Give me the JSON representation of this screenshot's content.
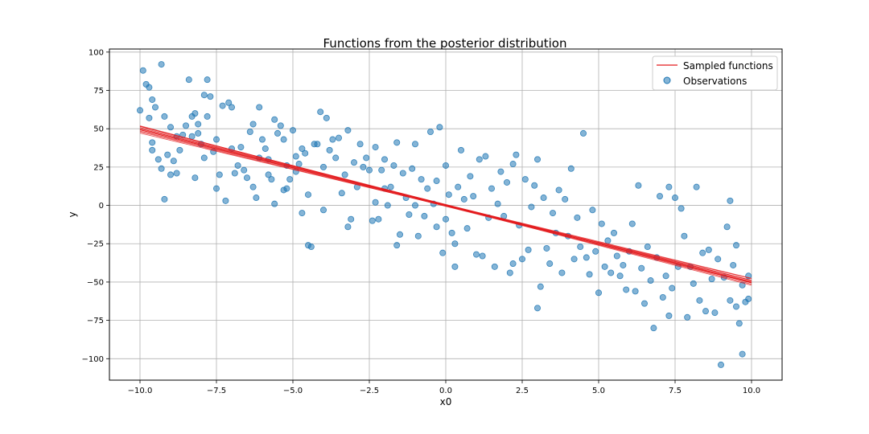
{
  "chart_data": {
    "type": "scatter",
    "title": "Functions from the posterior distribution",
    "xlabel": "x0",
    "ylabel": "y",
    "xlim": [
      -11,
      11
    ],
    "ylim": [
      -114,
      102
    ],
    "xticks": [
      -10.0,
      -7.5,
      -5.0,
      -2.5,
      0.0,
      2.5,
      5.0,
      7.5,
      10.0
    ],
    "xtick_labels": [
      "−10.0",
      "−7.5",
      "−5.0",
      "−2.5",
      "0.0",
      "2.5",
      "5.0",
      "7.5",
      "10.0"
    ],
    "yticks": [
      100,
      75,
      50,
      25,
      0,
      -25,
      -50,
      -75,
      -100
    ],
    "ytick_labels": [
      "100",
      "75",
      "50",
      "25",
      "0",
      "−25",
      "−50",
      "−75",
      "−100"
    ],
    "grid": true,
    "legend": {
      "position": "top-right",
      "entries": [
        {
          "label": "Sampled functions",
          "kind": "line",
          "color": "#e31a1c"
        },
        {
          "label": "Observations",
          "kind": "marker",
          "color": "#1f77b4"
        }
      ]
    },
    "sampled_functions": {
      "name": "Sampled functions",
      "color": "#e31a1c",
      "x_range": [
        -10,
        10
      ],
      "lines": [
        {
          "intercept": -0.5,
          "slope": -4.85
        },
        {
          "intercept": -0.2,
          "slope": -4.95
        },
        {
          "intercept": 0.0,
          "slope": -5.0
        },
        {
          "intercept": 0.3,
          "slope": -5.05
        },
        {
          "intercept": 0.5,
          "slope": -5.1
        },
        {
          "intercept": -0.3,
          "slope": -4.75
        },
        {
          "intercept": 0.2,
          "slope": -4.9
        },
        {
          "intercept": 0.6,
          "slope": -4.95
        },
        {
          "intercept": -0.6,
          "slope": -5.0
        },
        {
          "intercept": 0.1,
          "slope": -5.15
        },
        {
          "intercept": 0.4,
          "slope": -4.8
        },
        {
          "intercept": -0.1,
          "slope": -5.2
        }
      ]
    },
    "observations": {
      "name": "Observations",
      "color": "#1f77b4",
      "points": [
        [
          -10.0,
          62
        ],
        [
          -9.9,
          88
        ],
        [
          -9.8,
          79
        ],
        [
          -9.7,
          77
        ],
        [
          -9.7,
          57
        ],
        [
          -9.6,
          69
        ],
        [
          -9.6,
          41
        ],
        [
          -9.6,
          36
        ],
        [
          -9.5,
          64
        ],
        [
          -9.4,
          30
        ],
        [
          -9.3,
          92
        ],
        [
          -9.3,
          24
        ],
        [
          -9.2,
          58
        ],
        [
          -9.2,
          4
        ],
        [
          -9.1,
          33
        ],
        [
          -9.0,
          51
        ],
        [
          -9.0,
          20
        ],
        [
          -8.9,
          29
        ],
        [
          -8.8,
          21
        ],
        [
          -8.8,
          45
        ],
        [
          -8.7,
          36
        ],
        [
          -8.6,
          46
        ],
        [
          -8.5,
          52
        ],
        [
          -8.4,
          82
        ],
        [
          -8.3,
          58
        ],
        [
          -8.3,
          45
        ],
        [
          -8.2,
          18
        ],
        [
          -8.2,
          60
        ],
        [
          -8.1,
          53
        ],
        [
          -8.1,
          47
        ],
        [
          -8.0,
          40
        ],
        [
          -7.9,
          72
        ],
        [
          -7.9,
          31
        ],
        [
          -7.8,
          82
        ],
        [
          -7.8,
          58
        ],
        [
          -7.7,
          71
        ],
        [
          -7.6,
          35
        ],
        [
          -7.5,
          11
        ],
        [
          -7.5,
          43
        ],
        [
          -7.4,
          20
        ],
        [
          -7.3,
          65
        ],
        [
          -7.2,
          3
        ],
        [
          -7.1,
          67
        ],
        [
          -7.0,
          64
        ],
        [
          -7.0,
          37
        ],
        [
          -6.9,
          21
        ],
        [
          -6.8,
          26
        ],
        [
          -6.7,
          38
        ],
        [
          -6.6,
          23
        ],
        [
          -6.5,
          18
        ],
        [
          -6.4,
          48
        ],
        [
          -6.3,
          53
        ],
        [
          -6.3,
          12
        ],
        [
          -6.2,
          5
        ],
        [
          -6.1,
          64
        ],
        [
          -6.1,
          31
        ],
        [
          -6.0,
          43
        ],
        [
          -5.9,
          37
        ],
        [
          -5.8,
          30
        ],
        [
          -5.8,
          20
        ],
        [
          -5.7,
          17
        ],
        [
          -5.6,
          56
        ],
        [
          -5.6,
          1
        ],
        [
          -5.5,
          47
        ],
        [
          -5.4,
          52
        ],
        [
          -5.3,
          43
        ],
        [
          -5.3,
          10
        ],
        [
          -5.2,
          26
        ],
        [
          -5.2,
          11
        ],
        [
          -5.1,
          17
        ],
        [
          -5.0,
          49
        ],
        [
          -4.9,
          32
        ],
        [
          -4.9,
          22
        ],
        [
          -4.8,
          27
        ],
        [
          -4.7,
          37
        ],
        [
          -4.7,
          -5
        ],
        [
          -4.6,
          34
        ],
        [
          -4.5,
          7
        ],
        [
          -4.5,
          -26
        ],
        [
          -4.4,
          -27
        ],
        [
          -4.3,
          40
        ],
        [
          -4.2,
          40
        ],
        [
          -4.1,
          61
        ],
        [
          -4.0,
          25
        ],
        [
          -4.0,
          -3
        ],
        [
          -3.9,
          57
        ],
        [
          -3.8,
          36
        ],
        [
          -3.7,
          43
        ],
        [
          -3.6,
          31
        ],
        [
          -3.5,
          44
        ],
        [
          -3.4,
          8
        ],
        [
          -3.3,
          20
        ],
        [
          -3.2,
          49
        ],
        [
          -3.2,
          -14
        ],
        [
          -3.1,
          -9
        ],
        [
          -3.0,
          28
        ],
        [
          -2.9,
          12
        ],
        [
          -2.8,
          40
        ],
        [
          -2.7,
          25
        ],
        [
          -2.6,
          31
        ],
        [
          -2.5,
          23
        ],
        [
          -2.4,
          -10
        ],
        [
          -2.3,
          38
        ],
        [
          -2.3,
          2
        ],
        [
          -2.2,
          -9
        ],
        [
          -2.1,
          23
        ],
        [
          -2.0,
          30
        ],
        [
          -2.0,
          11
        ],
        [
          -1.9,
          0
        ],
        [
          -1.8,
          12
        ],
        [
          -1.7,
          26
        ],
        [
          -1.6,
          41
        ],
        [
          -1.6,
          -26
        ],
        [
          -1.5,
          -19
        ],
        [
          -1.4,
          21
        ],
        [
          -1.3,
          5
        ],
        [
          -1.2,
          -6
        ],
        [
          -1.1,
          24
        ],
        [
          -1.0,
          40
        ],
        [
          -1.0,
          0
        ],
        [
          -0.9,
          -20
        ],
        [
          -0.8,
          17
        ],
        [
          -0.7,
          -7
        ],
        [
          -0.6,
          11
        ],
        [
          -0.5,
          48
        ],
        [
          -0.4,
          1
        ],
        [
          -0.3,
          16
        ],
        [
          -0.3,
          -14
        ],
        [
          -0.2,
          51
        ],
        [
          -0.1,
          -31
        ],
        [
          0.0,
          26
        ],
        [
          0.0,
          -9
        ],
        [
          0.1,
          7
        ],
        [
          0.2,
          -18
        ],
        [
          0.3,
          -25
        ],
        [
          0.3,
          -40
        ],
        [
          0.4,
          12
        ],
        [
          0.5,
          36
        ],
        [
          0.6,
          4
        ],
        [
          0.7,
          -15
        ],
        [
          0.8,
          19
        ],
        [
          0.9,
          6
        ],
        [
          1.0,
          -32
        ],
        [
          1.1,
          30
        ],
        [
          1.2,
          -33
        ],
        [
          1.3,
          32
        ],
        [
          1.4,
          -8
        ],
        [
          1.5,
          11
        ],
        [
          1.6,
          -40
        ],
        [
          1.7,
          1
        ],
        [
          1.8,
          22
        ],
        [
          1.9,
          -7
        ],
        [
          2.0,
          15
        ],
        [
          2.1,
          -44
        ],
        [
          2.2,
          27
        ],
        [
          2.2,
          -38
        ],
        [
          2.3,
          33
        ],
        [
          2.4,
          -13
        ],
        [
          2.5,
          -35
        ],
        [
          2.6,
          17
        ],
        [
          2.7,
          -29
        ],
        [
          2.8,
          -1
        ],
        [
          2.9,
          13
        ],
        [
          3.0,
          -67
        ],
        [
          3.0,
          30
        ],
        [
          3.1,
          -53
        ],
        [
          3.2,
          5
        ],
        [
          3.3,
          -28
        ],
        [
          3.4,
          -38
        ],
        [
          3.5,
          -5
        ],
        [
          3.6,
          -18
        ],
        [
          3.7,
          10
        ],
        [
          3.8,
          -44
        ],
        [
          3.9,
          4
        ],
        [
          4.0,
          -20
        ],
        [
          4.1,
          24
        ],
        [
          4.2,
          -35
        ],
        [
          4.3,
          -8
        ],
        [
          4.4,
          -27
        ],
        [
          4.5,
          47
        ],
        [
          4.6,
          -34
        ],
        [
          4.7,
          -45
        ],
        [
          4.8,
          -3
        ],
        [
          4.9,
          -30
        ],
        [
          5.0,
          -57
        ],
        [
          5.1,
          -12
        ],
        [
          5.2,
          -40
        ],
        [
          5.3,
          -23
        ],
        [
          5.4,
          -44
        ],
        [
          5.5,
          -18
        ],
        [
          5.6,
          -33
        ],
        [
          5.7,
          -46
        ],
        [
          5.8,
          -39
        ],
        [
          5.9,
          -55
        ],
        [
          6.0,
          -30
        ],
        [
          6.1,
          -12
        ],
        [
          6.2,
          -56
        ],
        [
          6.3,
          13
        ],
        [
          6.4,
          -41
        ],
        [
          6.5,
          -64
        ],
        [
          6.6,
          -27
        ],
        [
          6.7,
          -49
        ],
        [
          6.8,
          -80
        ],
        [
          6.9,
          -34
        ],
        [
          7.0,
          6
        ],
        [
          7.1,
          -60
        ],
        [
          7.2,
          -46
        ],
        [
          7.3,
          12
        ],
        [
          7.3,
          -72
        ],
        [
          7.4,
          -54
        ],
        [
          7.5,
          5
        ],
        [
          7.6,
          -40
        ],
        [
          7.7,
          -2
        ],
        [
          7.8,
          -20
        ],
        [
          7.9,
          -73
        ],
        [
          8.0,
          -40
        ],
        [
          8.1,
          -51
        ],
        [
          8.2,
          12
        ],
        [
          8.3,
          -62
        ],
        [
          8.4,
          -31
        ],
        [
          8.5,
          -69
        ],
        [
          8.6,
          -29
        ],
        [
          8.7,
          -48
        ],
        [
          8.8,
          -70
        ],
        [
          8.9,
          -35
        ],
        [
          9.0,
          -104
        ],
        [
          9.1,
          -47
        ],
        [
          9.2,
          -14
        ],
        [
          9.3,
          -62
        ],
        [
          9.3,
          3
        ],
        [
          9.4,
          -39
        ],
        [
          9.5,
          -66
        ],
        [
          9.5,
          -26
        ],
        [
          9.6,
          -77
        ],
        [
          9.7,
          -97
        ],
        [
          9.7,
          -52
        ],
        [
          9.8,
          -63
        ],
        [
          9.9,
          -61
        ],
        [
          9.9,
          -46
        ]
      ]
    }
  }
}
